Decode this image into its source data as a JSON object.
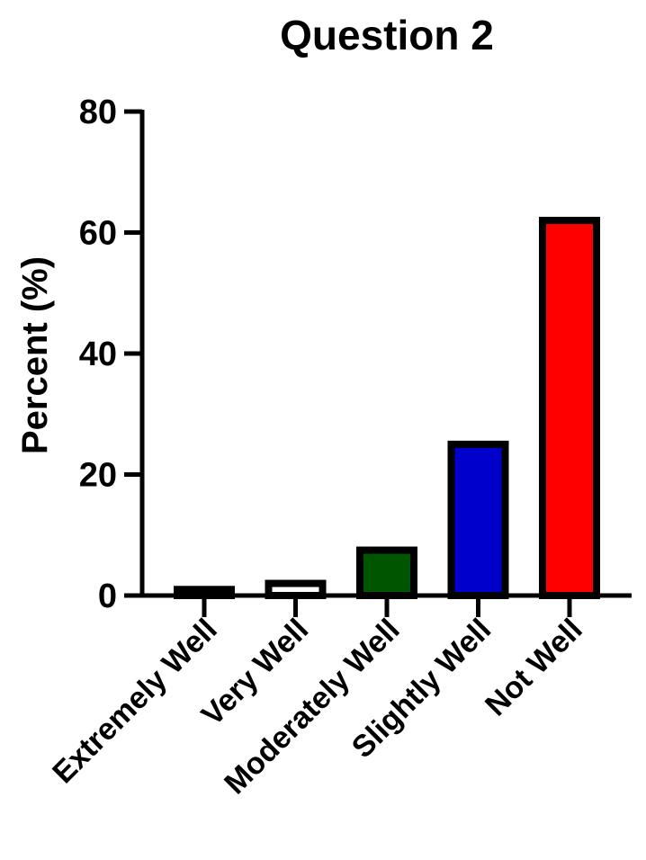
{
  "chart_data": {
    "type": "bar",
    "title": "Question 2",
    "xlabel": "",
    "ylabel": "Percent (%)",
    "ylim": [
      0,
      80
    ],
    "yticks": [
      0,
      20,
      40,
      60,
      80
    ],
    "categories": [
      "Extremely Well",
      "Very Well",
      "Moderately Well",
      "Slightly Well",
      "Not Well"
    ],
    "values": [
      1,
      2,
      7.5,
      25,
      62
    ],
    "colors": [
      "#000000",
      "#ffffff",
      "#005500",
      "#0000cc",
      "#ff0000"
    ],
    "grid": false,
    "legend": "none"
  }
}
